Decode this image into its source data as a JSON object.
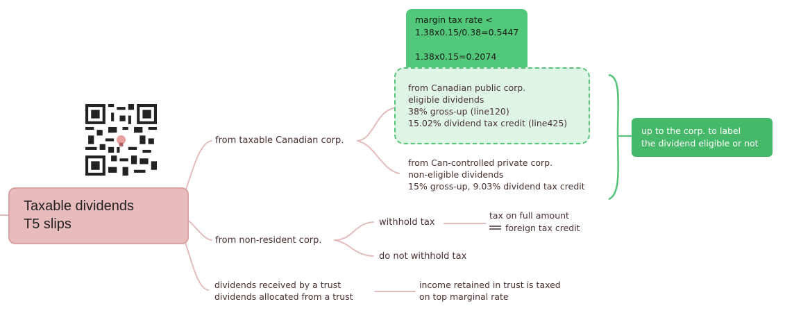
{
  "root": {
    "lines": [
      "Taxable dividends",
      "T5 slips"
    ]
  },
  "branches": {
    "canadian": {
      "label": "from taxable Canadian corp.",
      "eligible": {
        "lines": [
          "from Canadian public corp.",
          "eligible dividends",
          "38% gross-up (line120)",
          "15.02% dividend tax credit (line425)"
        ]
      },
      "non_eligible": {
        "lines": [
          "from Can-controlled private corp.",
          "non-eligible dividends",
          "15% gross-up, 9.03% dividend tax credit"
        ]
      },
      "margin_note": {
        "lines": [
          "margin tax rate <",
          "1.38x0.15/0.38=0.5447",
          "",
          "1.38x0.15=0.2074"
        ]
      },
      "bracket_note": {
        "lines": [
          "up to the corp. to label",
          "the dividend eligible or not"
        ]
      }
    },
    "non_resident": {
      "label": "from non-resident corp.",
      "withhold": {
        "label": "withhold tax",
        "result_lines": [
          "tax on full amount",
          "foreign tax credit"
        ]
      },
      "no_withhold": {
        "label": "do not withhold tax"
      }
    },
    "trust": {
      "label_lines": [
        "dividends received by a trust",
        "dividends allocated from a trust"
      ],
      "result_lines": [
        "income retained in trust is taxed",
        "on top marginal rate"
      ]
    }
  },
  "qr_code": {
    "icon": "qr-code-icon"
  },
  "colors": {
    "root_fill": "#e8bcbc",
    "connector": "#e4bcbc",
    "note_green": "#52c97a",
    "dashed_green": "#55c277",
    "side_green": "#45b86a",
    "text": "#4a3030"
  }
}
